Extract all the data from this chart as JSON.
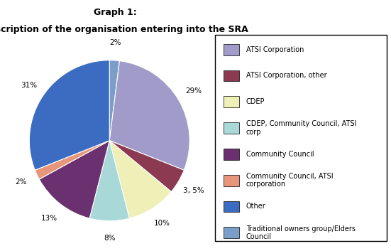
{
  "title_line1": "Graph 1:",
  "title_line2": "Description of the organisation entering into the SRA",
  "ordered_values": [
    2,
    29,
    5,
    10,
    8,
    13,
    2,
    31
  ],
  "ordered_pct": [
    "2%",
    "29%",
    "3, 5%",
    "10%",
    "8%",
    "13%",
    "2%",
    "31%"
  ],
  "ordered_colors": [
    "#7B9EC9",
    "#A09BC8",
    "#8B3A52",
    "#EFEFB8",
    "#A8D8D8",
    "#6B3070",
    "#E8967A",
    "#3B6CC2"
  ],
  "legend_colors": [
    "#A09BC8",
    "#8B3A52",
    "#EFEFB8",
    "#A8D8D8",
    "#6B3070",
    "#E8967A",
    "#3B6CC2",
    "#7B9EC9"
  ],
  "legend_labels": [
    "ATSI Corporation",
    "ATSI Corporation, other",
    "CDEP",
    "CDEP, Community Council, ATSI\ncorp",
    "Community Council",
    "Community Council, ATSI\ncorporation",
    "Other",
    "Traditional owners group/Elders\nCouncil"
  ],
  "pie_bg_color": "#C8C8C8",
  "fig_bg_color": "#FFFFFF",
  "title_fontsize": 9,
  "label_fontsize": 7.5,
  "legend_fontsize": 7
}
